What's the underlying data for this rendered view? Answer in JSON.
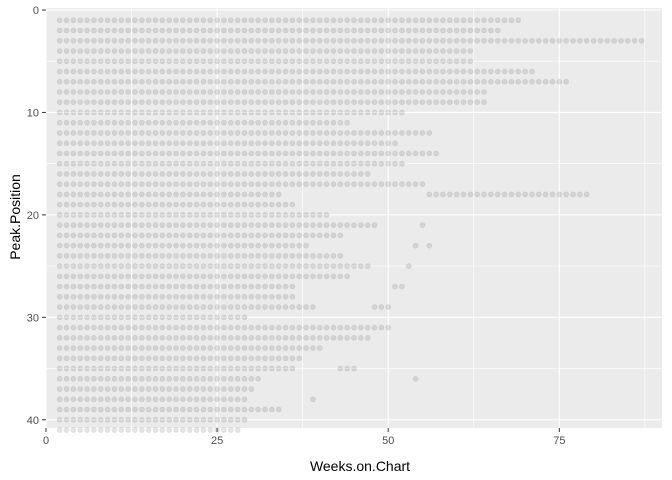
{
  "chart_data": {
    "type": "scatter",
    "title": "",
    "xlabel": "Weeks.on.Chart",
    "ylabel": "Peak.Position",
    "xlim": [
      0,
      90
    ],
    "ylim": [
      0,
      41
    ],
    "y_reversed": true,
    "x_ticks": [
      0,
      25,
      50,
      75
    ],
    "x_tick_labels": [
      "0",
      "25",
      "50",
      "75"
    ],
    "y_ticks": [
      0,
      10,
      20,
      30,
      40
    ],
    "y_tick_labels": [
      "0",
      "10",
      "20",
      "30",
      "40"
    ],
    "grid": true,
    "legend": "none",
    "point_alpha": 0.1,
    "point_color": "#000000",
    "panel_background": "#ebebeb",
    "grid_color": "#ffffff",
    "rows": [
      {
        "peak": 1,
        "runs": [
          [
            2,
            69
          ]
        ]
      },
      {
        "peak": 2,
        "runs": [
          [
            2,
            66
          ]
        ]
      },
      {
        "peak": 3,
        "runs": [
          [
            2,
            87
          ]
        ]
      },
      {
        "peak": 4,
        "runs": [
          [
            2,
            62
          ]
        ]
      },
      {
        "peak": 5,
        "runs": [
          [
            2,
            62
          ]
        ]
      },
      {
        "peak": 6,
        "runs": [
          [
            2,
            71
          ]
        ]
      },
      {
        "peak": 7,
        "runs": [
          [
            2,
            76
          ]
        ]
      },
      {
        "peak": 8,
        "runs": [
          [
            2,
            64
          ]
        ]
      },
      {
        "peak": 9,
        "runs": [
          [
            2,
            64
          ]
        ]
      },
      {
        "peak": 10,
        "runs": [
          [
            2,
            52
          ]
        ]
      },
      {
        "peak": 11,
        "runs": [
          [
            2,
            44
          ]
        ]
      },
      {
        "peak": 12,
        "runs": [
          [
            2,
            56
          ]
        ]
      },
      {
        "peak": 13,
        "runs": [
          [
            2,
            51
          ]
        ]
      },
      {
        "peak": 14,
        "runs": [
          [
            2,
            57
          ]
        ]
      },
      {
        "peak": 15,
        "runs": [
          [
            2,
            52
          ]
        ]
      },
      {
        "peak": 16,
        "runs": [
          [
            2,
            47
          ]
        ]
      },
      {
        "peak": 17,
        "runs": [
          [
            2,
            55
          ]
        ]
      },
      {
        "peak": 18,
        "runs": [
          [
            2,
            34
          ],
          [
            56,
            79
          ]
        ]
      },
      {
        "peak": 19,
        "runs": [
          [
            2,
            36
          ]
        ]
      },
      {
        "peak": 20,
        "runs": [
          [
            2,
            41
          ]
        ]
      },
      {
        "peak": 21,
        "runs": [
          [
            2,
            48
          ]
        ],
        "points": [
          55
        ]
      },
      {
        "peak": 22,
        "runs": [
          [
            2,
            43
          ]
        ]
      },
      {
        "peak": 23,
        "runs": [
          [
            2,
            38
          ]
        ],
        "points": [
          54,
          56
        ]
      },
      {
        "peak": 24,
        "runs": [
          [
            2,
            43
          ]
        ]
      },
      {
        "peak": 25,
        "runs": [
          [
            2,
            47
          ]
        ],
        "points": [
          53
        ]
      },
      {
        "peak": 26,
        "runs": [
          [
            2,
            44
          ]
        ]
      },
      {
        "peak": 27,
        "runs": [
          [
            2,
            36
          ]
        ],
        "points": [
          51,
          52
        ]
      },
      {
        "peak": 28,
        "runs": [
          [
            2,
            36
          ]
        ]
      },
      {
        "peak": 29,
        "runs": [
          [
            2,
            39
          ]
        ],
        "points": [
          48,
          49,
          50
        ]
      },
      {
        "peak": 30,
        "runs": [
          [
            2,
            29
          ]
        ]
      },
      {
        "peak": 31,
        "runs": [
          [
            2,
            50
          ]
        ]
      },
      {
        "peak": 32,
        "runs": [
          [
            2,
            47
          ]
        ]
      },
      {
        "peak": 33,
        "runs": [
          [
            2,
            40
          ]
        ]
      },
      {
        "peak": 34,
        "runs": [
          [
            2,
            37
          ]
        ]
      },
      {
        "peak": 35,
        "runs": [
          [
            2,
            36
          ]
        ],
        "points": [
          43,
          44,
          45
        ]
      },
      {
        "peak": 36,
        "runs": [
          [
            2,
            31
          ]
        ],
        "points": [
          54
        ]
      },
      {
        "peak": 37,
        "runs": [
          [
            2,
            30
          ]
        ]
      },
      {
        "peak": 38,
        "runs": [
          [
            2,
            29
          ]
        ],
        "points": [
          39
        ]
      },
      {
        "peak": 39,
        "runs": [
          [
            2,
            34
          ]
        ]
      },
      {
        "peak": 40,
        "runs": [
          [
            2,
            29
          ]
        ]
      },
      {
        "peak": 41,
        "runs": [
          [
            2,
            28
          ]
        ]
      }
    ]
  }
}
